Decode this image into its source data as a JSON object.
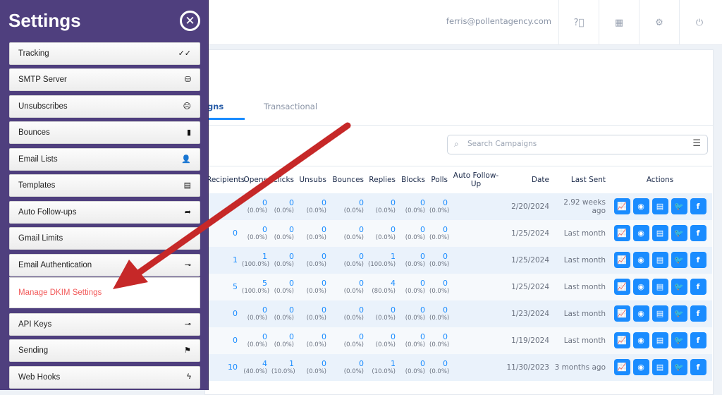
{
  "header": {
    "user_email": "ferris@pollentagency.com",
    "icons": [
      "help-icon",
      "apps-grid-icon",
      "gear-icon",
      "power-icon"
    ]
  },
  "tabs": [
    {
      "label": "Campaigns",
      "visible_label": "igns",
      "active": true
    },
    {
      "label": "Transactional",
      "active": false
    }
  ],
  "search": {
    "placeholder": "Search Campaigns",
    "value": ""
  },
  "table": {
    "columns": [
      "Recipients",
      "Opens",
      "Clicks",
      "Unsubs",
      "Bounces",
      "Replies",
      "Blocks",
      "Polls",
      "Auto Follow-Up",
      "Date",
      "Last Sent",
      "Actions"
    ],
    "rows": [
      {
        "recipients": "",
        "opens": [
          "0",
          "(0.0%)"
        ],
        "clicks": [
          "0",
          "(0.0%)"
        ],
        "unsubs": [
          "0",
          "(0.0%)"
        ],
        "bounces": [
          "0",
          "(0.0%)"
        ],
        "replies": [
          "0",
          "(0.0%)"
        ],
        "blocks": [
          "0",
          "(0.0%)"
        ],
        "polls": [
          "0",
          "(0.0%)"
        ],
        "auto": "",
        "date": "2/20/2024",
        "last_sent": "2.92 weeks ago"
      },
      {
        "recipients": "0",
        "opens": [
          "0",
          "(0.0%)"
        ],
        "clicks": [
          "0",
          "(0.0%)"
        ],
        "unsubs": [
          "0",
          "(0.0%)"
        ],
        "bounces": [
          "0",
          "(0.0%)"
        ],
        "replies": [
          "0",
          "(0.0%)"
        ],
        "blocks": [
          "0",
          "(0.0%)"
        ],
        "polls": [
          "0",
          "(0.0%)"
        ],
        "auto": "",
        "date": "1/25/2024",
        "last_sent": "Last month"
      },
      {
        "recipients": "1",
        "opens": [
          "1",
          "(100.0%)"
        ],
        "clicks": [
          "0",
          "(0.0%)"
        ],
        "unsubs": [
          "0",
          "(0.0%)"
        ],
        "bounces": [
          "0",
          "(0.0%)"
        ],
        "replies": [
          "1",
          "(100.0%)"
        ],
        "blocks": [
          "0",
          "(0.0%)"
        ],
        "polls": [
          "0",
          "(0.0%)"
        ],
        "auto": "",
        "date": "1/25/2024",
        "last_sent": "Last month"
      },
      {
        "recipients": "5",
        "opens": [
          "5",
          "(100.0%)"
        ],
        "clicks": [
          "0",
          "(0.0%)"
        ],
        "unsubs": [
          "0",
          "(0.0%)"
        ],
        "bounces": [
          "0",
          "(0.0%)"
        ],
        "replies": [
          "4",
          "(80.0%)"
        ],
        "blocks": [
          "0",
          "(0.0%)"
        ],
        "polls": [
          "0",
          "(0.0%)"
        ],
        "auto": "",
        "date": "1/25/2024",
        "last_sent": "Last month"
      },
      {
        "recipients": "0",
        "opens": [
          "0",
          "(0.0%)"
        ],
        "clicks": [
          "0",
          "(0.0%)"
        ],
        "unsubs": [
          "0",
          "(0.0%)"
        ],
        "bounces": [
          "0",
          "(0.0%)"
        ],
        "replies": [
          "0",
          "(0.0%)"
        ],
        "blocks": [
          "0",
          "(0.0%)"
        ],
        "polls": [
          "0",
          "(0.0%)"
        ],
        "auto": "",
        "date": "1/23/2024",
        "last_sent": "Last month"
      },
      {
        "recipients": "0",
        "opens": [
          "0",
          "(0.0%)"
        ],
        "clicks": [
          "0",
          "(0.0%)"
        ],
        "unsubs": [
          "0",
          "(0.0%)"
        ],
        "bounces": [
          "0",
          "(0.0%)"
        ],
        "replies": [
          "0",
          "(0.0%)"
        ],
        "blocks": [
          "0",
          "(0.0%)"
        ],
        "polls": [
          "0",
          "(0.0%)"
        ],
        "auto": "",
        "date": "1/19/2024",
        "last_sent": "Last month"
      },
      {
        "recipients": "10",
        "opens": [
          "4",
          "(40.0%)"
        ],
        "clicks": [
          "1",
          "(10.0%)"
        ],
        "unsubs": [
          "0",
          "(0.0%)"
        ],
        "bounces": [
          "0",
          "(0.0%)"
        ],
        "replies": [
          "1",
          "(10.0%)"
        ],
        "blocks": [
          "0",
          "(0.0%)"
        ],
        "polls": [
          "0",
          "(0.0%)"
        ],
        "auto": "",
        "date": "11/30/2023",
        "last_sent": "3 months ago"
      }
    ],
    "actions": [
      {
        "icon": "chart-icon",
        "glyph": "📈"
      },
      {
        "icon": "eye-icon",
        "glyph": "◉"
      },
      {
        "icon": "archive-icon",
        "glyph": "▤"
      },
      {
        "icon": "twitter-icon",
        "glyph": "🐦"
      },
      {
        "icon": "facebook-icon",
        "glyph": "f"
      }
    ]
  },
  "sidebar": {
    "title": "Settings",
    "items": [
      {
        "label": "Tracking",
        "icon": "double-check-icon",
        "glyph": "✓✓"
      },
      {
        "label": "SMTP Server",
        "icon": "database-icon",
        "glyph": "⛁"
      },
      {
        "label": "Unsubscribes",
        "icon": "sad-face-icon",
        "glyph": "☹"
      },
      {
        "label": "Bounces",
        "icon": "mobile-icon",
        "glyph": "▮"
      },
      {
        "label": "Email Lists",
        "icon": "address-card-icon",
        "glyph": "👤"
      },
      {
        "label": "Templates",
        "icon": "template-icon",
        "glyph": "▤"
      },
      {
        "label": "Auto Follow-ups",
        "icon": "forward-icon",
        "glyph": "➦"
      },
      {
        "label": "Gmail Limits",
        "icon": "gauge-icon",
        "glyph": "◔"
      },
      {
        "label": "Email Authentication",
        "icon": "key-icon",
        "glyph": "⊸"
      },
      {
        "label": "API Keys",
        "icon": "key-icon",
        "glyph": "⊸"
      },
      {
        "label": "Sending",
        "icon": "signpost-icon",
        "glyph": "⚑"
      },
      {
        "label": "Web Hooks",
        "icon": "bolt-icon",
        "glyph": "ϟ"
      }
    ],
    "submenu": {
      "label": "Manage DKIM Settings",
      "color": "#f25a5a"
    }
  },
  "colors": {
    "sidebar": "#4f3f7e",
    "accent": "#1a8cff",
    "arrow": "#c62828"
  }
}
